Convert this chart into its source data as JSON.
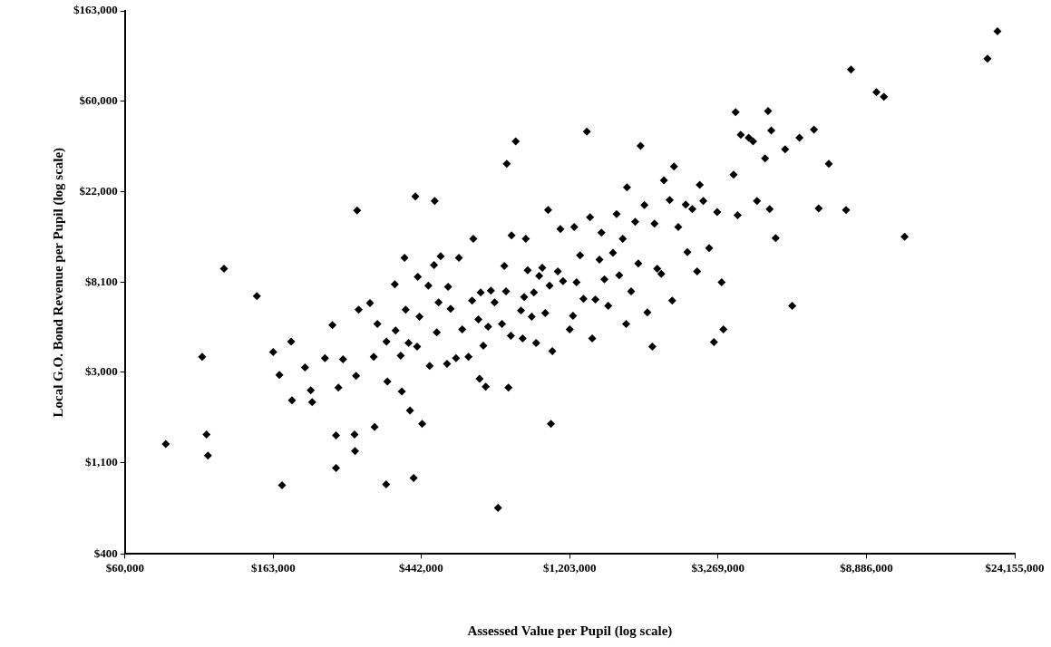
{
  "chart_data": {
    "type": "scatter",
    "xlabel": "Assessed Value per Pupil (log scale)",
    "ylabel": "Local G.O. Bond Revenue per Pupil (log scale)",
    "log": "xy",
    "grid": false,
    "legend": false,
    "marker": "diamond",
    "xlim": [
      60000,
      24155000
    ],
    "ylim": [
      400,
      163000
    ],
    "xticks": [
      {
        "value": 60000,
        "label": "$60,000"
      },
      {
        "value": 163000,
        "label": "$163,000"
      },
      {
        "value": 442000,
        "label": "$442,000"
      },
      {
        "value": 1203000,
        "label": "$1,203,000"
      },
      {
        "value": 3269000,
        "label": "$3,269,000"
      },
      {
        "value": 8886000,
        "label": "$8,886,000"
      },
      {
        "value": 24155000,
        "label": "$24,155,000"
      }
    ],
    "yticks": [
      {
        "value": 400,
        "label": "$400"
      },
      {
        "value": 1100,
        "label": "$1,100"
      },
      {
        "value": 3000,
        "label": "$3,000"
      },
      {
        "value": 8100,
        "label": "$8,100"
      },
      {
        "value": 22000,
        "label": "$22,000"
      },
      {
        "value": 60000,
        "label": "$60,000"
      },
      {
        "value": 163000,
        "label": "$163,000"
      }
    ],
    "series": [
      {
        "color": "#000000",
        "x": [
          79000,
          104000,
          105000,
          101000,
          117000,
          146000,
          173000,
          163000,
          170000,
          184000,
          185000,
          202000,
          210000,
          212000,
          231000,
          243000,
          249000,
          249000,
          253000,
          261000,
          282000,
          283000,
          287000,
          285000,
          290000,
          313000,
          321000,
          323000,
          329000,
          349000,
          350000,
          352000,
          370000,
          372000,
          385000,
          388000,
          395000,
          398000,
          406000,
          410000,
          420000,
          425000,
          430000,
          432000,
          437000,
          445000,
          464000,
          468000,
          482000,
          484000,
          491000,
          497000,
          504000,
          526000,
          530000,
          539000,
          559000,
          570000,
          583000,
          608000,
          623000,
          628000,
          650000,
          655000,
          660000,
          672000,
          683000,
          694000,
          707000,
          725000,
          742000,
          762000,
          774000,
          783000,
          787000,
          796000,
          809000,
          813000,
          836000,
          866000,
          876000,
          885000,
          895000,
          906000,
          931000,
          945000,
          959000,
          979000,
          1000000,
          1020000,
          1040000,
          1050000,
          1060000,
          1070000,
          1110000,
          1130000,
          1150000,
          1203000,
          1230000,
          1240000,
          1260000,
          1290000,
          1320000,
          1350000,
          1380000,
          1400000,
          1430000,
          1470000,
          1490000,
          1520000,
          1560000,
          1610000,
          1650000,
          1680000,
          1720000,
          1760000,
          1770000,
          1820000,
          1870000,
          1910000,
          1940000,
          1990000,
          2030000,
          2100000,
          2130000,
          2170000,
          2230000,
          2270000,
          2360000,
          2400000,
          2430000,
          2500000,
          2630000,
          2660000,
          2750000,
          2840000,
          2890000,
          2960000,
          3080000,
          3180000,
          3250000,
          3350000,
          3390000,
          3630000,
          3680000,
          3730000,
          3810000,
          4020000,
          4140000,
          4250000,
          4490000,
          4580000,
          4630000,
          4680000,
          4820000,
          5140000,
          5390000,
          5660000,
          6240000,
          6440000,
          6900000,
          7750000,
          8010000,
          9510000,
          10000000,
          11500000,
          20100000,
          21500000
        ],
        "values": [
          1350,
          1500,
          1190,
          3550,
          9400,
          6950,
          856,
          3740,
          2900,
          4200,
          2190,
          3150,
          2450,
          2150,
          3490,
          5040,
          1485,
          1035,
          2520,
          3450,
          1500,
          1250,
          17900,
          2870,
          5970,
          6420,
          3550,
          1630,
          5100,
          864,
          4200,
          2700,
          7920,
          4740,
          3590,
          2420,
          10600,
          5970,
          4130,
          1960,
          928,
          20900,
          3970,
          8600,
          5530,
          1690,
          7790,
          3210,
          9800,
          19900,
          4650,
          6480,
          10800,
          3280,
          7700,
          6030,
          3490,
          10600,
          4800,
          3550,
          6610,
          13100,
          5370,
          2780,
          7230,
          4010,
          2550,
          4950,
          7380,
          6480,
          666,
          5100,
          9700,
          7310,
          30000,
          2520,
          4480,
          13600,
          38500,
          5920,
          4340,
          6880,
          13100,
          9230,
          5530,
          7230,
          4130,
          8690,
          9490,
          5750,
          18000,
          7790,
          1690,
          3780,
          9130,
          14600,
          8200,
          4800,
          5580,
          14900,
          8100,
          10900,
          6740,
          42900,
          16600,
          4340,
          6690,
          10400,
          14000,
          8350,
          6240,
          11200,
          17200,
          8750,
          13100,
          5100,
          23100,
          7310,
          15800,
          9970,
          36600,
          19000,
          5800,
          3970,
          15500,
          9410,
          8870,
          25000,
          20100,
          6610,
          29100,
          14900,
          19100,
          11300,
          18200,
          9130,
          23800,
          19900,
          11800,
          4170,
          17600,
          8100,
          4800,
          26600,
          53100,
          17000,
          41400,
          40000,
          38500,
          19900,
          31900,
          53800,
          18200,
          43400,
          13200,
          35200,
          6240,
          40000,
          43800,
          18300,
          30000,
          18000,
          85200,
          66300,
          63000,
          13400,
          96000,
          130000
        ]
      }
    ]
  }
}
